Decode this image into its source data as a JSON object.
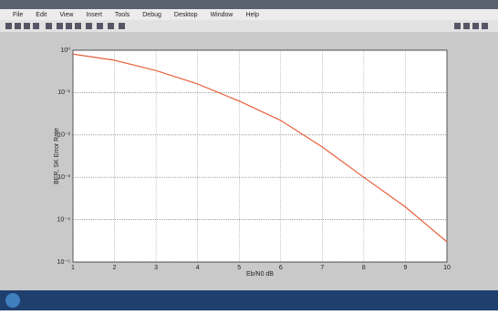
{
  "menu": [
    "File",
    "Edit",
    "View",
    "Insert",
    "Tools",
    "Debug",
    "Desktop",
    "Window",
    "Help"
  ],
  "chart_data": {
    "type": "line",
    "xlabel": "Eb/N0 dB",
    "ylabel": "BER, SK Error Rate",
    "x": [
      1,
      2,
      3,
      4,
      5,
      6,
      7,
      8,
      9,
      10
    ],
    "series": [
      {
        "color": "#e8603c",
        "values": [
          0.81,
          0.58,
          0.33,
          0.16,
          0.063,
          0.022,
          0.0052,
          0.001,
          0.0002,
          3e-05
        ]
      }
    ],
    "xlim": [
      1,
      10
    ],
    "xticks": [
      1,
      2,
      3,
      4,
      5,
      6,
      7,
      8,
      9,
      10
    ],
    "ylim": [
      1e-05,
      1
    ],
    "log_y": true,
    "grid": true,
    "yticks": [
      {
        "value": 1,
        "label": "10⁰"
      },
      {
        "value": 0.1,
        "label": "10⁻¹"
      },
      {
        "value": 0.01,
        "label": "10⁻²"
      },
      {
        "value": 0.001,
        "label": "10⁻³"
      },
      {
        "value": 0.0001,
        "label": "10⁻⁴"
      },
      {
        "value": 1e-05,
        "label": "10⁻⁵"
      }
    ]
  }
}
